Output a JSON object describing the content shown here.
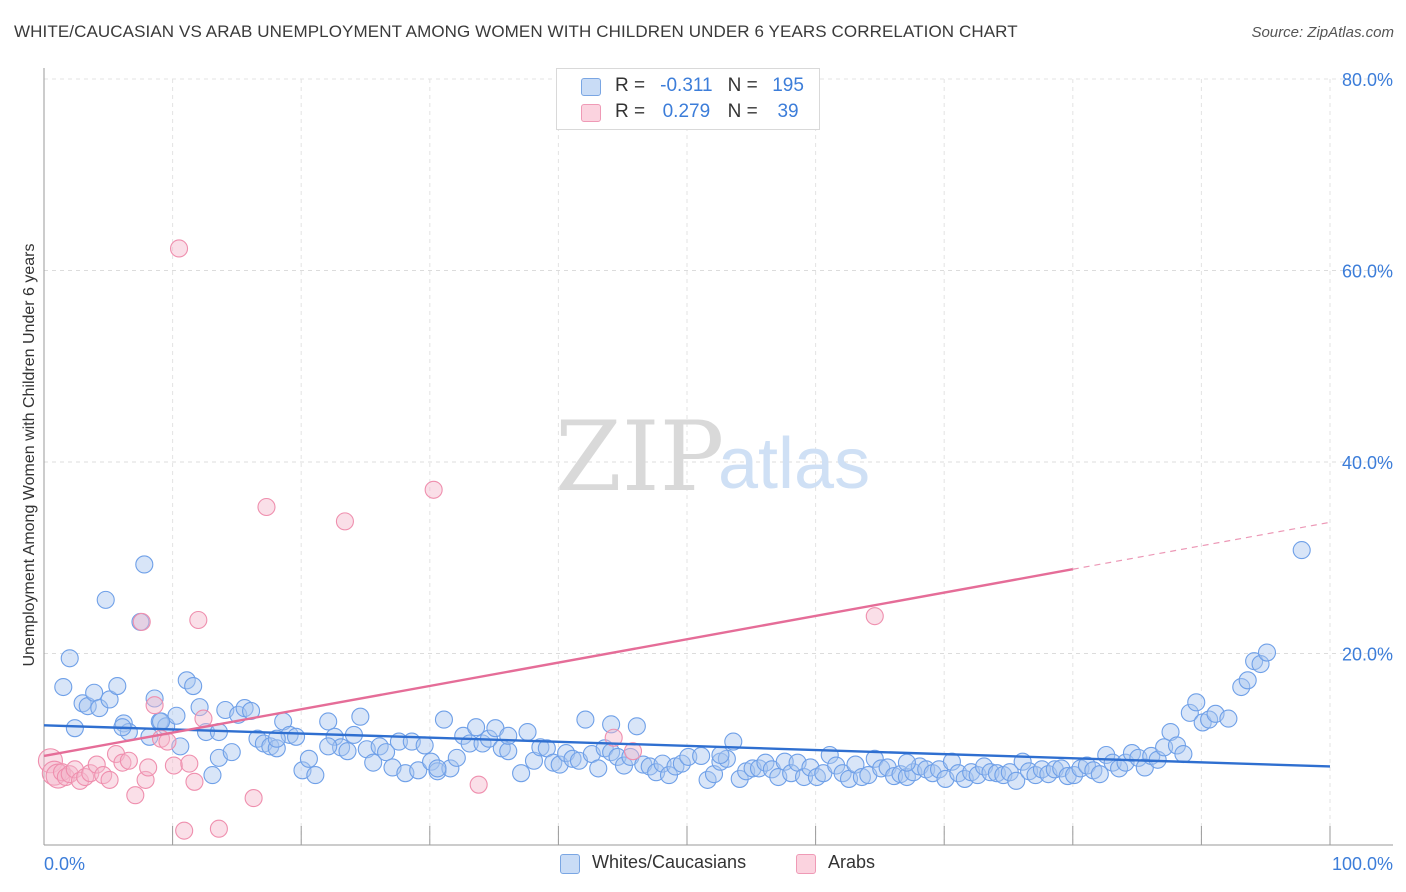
{
  "title": "WHITE/CAUCASIAN VS ARAB UNEMPLOYMENT AMONG WOMEN WITH CHILDREN UNDER 6 YEARS CORRELATION CHART",
  "source": "Source: ZipAtlas.com",
  "watermark": {
    "zip": "ZIP",
    "atlas": "atlas"
  },
  "legend": {
    "r_label": "R =",
    "n_label": "N =",
    "rows": [
      {
        "r": "-0.311",
        "n": "195",
        "color": "#a8c6f0"
      },
      {
        "r": "0.279",
        "n": "39",
        "color": "#f5b8cb"
      }
    ]
  },
  "bottom_legend": [
    "Whites/Caucasians",
    "Arabs"
  ],
  "chart_data": {
    "type": "scatter",
    "title": "WHITE/CAUCASIAN VS ARAB UNEMPLOYMENT AMONG WOMEN WITH CHILDREN UNDER 6 YEARS CORRELATION CHART",
    "xlabel": "",
    "ylabel": "Unemployment Among Women with Children Under 6 years",
    "xlim": [
      0,
      100
    ],
    "ylim": [
      0,
      80
    ],
    "x_tick_labels": [
      "0.0%",
      "100.0%"
    ],
    "y_ticks": [
      20,
      40,
      60,
      80
    ],
    "y_tick_labels": [
      "20.0%",
      "40.0%",
      "60.0%",
      "80.0%"
    ],
    "grid": true,
    "colors": {
      "whites": "#6fa0e8",
      "whites_line": "#2f6fd0",
      "arabs": "#ef8fae",
      "arabs_line": "#e56d98",
      "tick_label": "#3c7dd9"
    },
    "series": [
      {
        "name": "Whites/Caucasians",
        "r": -0.311,
        "n": 195,
        "trend": {
          "x": [
            0,
            100
          ],
          "y": [
            12.5,
            8.2
          ]
        },
        "points": [
          [
            1.5,
            16.5
          ],
          [
            2,
            19.5
          ],
          [
            2.4,
            12.2
          ],
          [
            3,
            14.8
          ],
          [
            3.4,
            14.5
          ],
          [
            3.9,
            15.9
          ],
          [
            4.3,
            14.3
          ],
          [
            4.8,
            25.6
          ],
          [
            5.1,
            15.2
          ],
          [
            5.7,
            16.6
          ],
          [
            6.2,
            12.7
          ],
          [
            6.6,
            11.8
          ],
          [
            7.8,
            29.3
          ],
          [
            7.5,
            23.3
          ],
          [
            8.2,
            11.3
          ],
          [
            8.6,
            15.3
          ],
          [
            9,
            12.9
          ],
          [
            9.5,
            12.4
          ],
          [
            10.3,
            13.5
          ],
          [
            10.6,
            10.3
          ],
          [
            11.1,
            17.2
          ],
          [
            11.6,
            16.6
          ],
          [
            12.1,
            14.4
          ],
          [
            12.6,
            11.8
          ],
          [
            13.1,
            7.3
          ],
          [
            13.6,
            9.1
          ],
          [
            14.1,
            14.1
          ],
          [
            14.6,
            9.7
          ],
          [
            15.1,
            13.6
          ],
          [
            15.6,
            14.3
          ],
          [
            16.1,
            14
          ],
          [
            16.6,
            11.1
          ],
          [
            17.1,
            10.6
          ],
          [
            17.6,
            10.3
          ],
          [
            18.1,
            10.1
          ],
          [
            18.6,
            12.9
          ],
          [
            19.1,
            11.5
          ],
          [
            19.6,
            11.3
          ],
          [
            20.1,
            7.8
          ],
          [
            20.6,
            9
          ],
          [
            21.1,
            7.3
          ],
          [
            22.1,
            12.9
          ],
          [
            22.6,
            11.3
          ],
          [
            23.1,
            10.2
          ],
          [
            23.6,
            9.8
          ],
          [
            24.1,
            11.5
          ],
          [
            24.6,
            13.4
          ],
          [
            25.1,
            10
          ],
          [
            25.6,
            8.6
          ],
          [
            26.1,
            10.3
          ],
          [
            26.6,
            9.7
          ],
          [
            27.1,
            8.1
          ],
          [
            27.6,
            10.8
          ],
          [
            28.1,
            7.5
          ],
          [
            28.6,
            10.8
          ],
          [
            29.1,
            7.8
          ],
          [
            29.6,
            10.4
          ],
          [
            30.1,
            8.7
          ],
          [
            30.6,
            7.7
          ],
          [
            31.1,
            13.1
          ],
          [
            31.6,
            8
          ],
          [
            32.1,
            9.1
          ],
          [
            32.6,
            11.4
          ],
          [
            33.1,
            10.6
          ],
          [
            33.6,
            12.3
          ],
          [
            34.1,
            10.6
          ],
          [
            34.6,
            11.1
          ],
          [
            35.1,
            12.2
          ],
          [
            35.6,
            10.1
          ],
          [
            36.1,
            9.8
          ],
          [
            37.1,
            7.5
          ],
          [
            37.6,
            11.8
          ],
          [
            38.1,
            8.8
          ],
          [
            38.6,
            10.2
          ],
          [
            39.1,
            10.1
          ],
          [
            39.6,
            8.6
          ],
          [
            40.1,
            8.4
          ],
          [
            40.6,
            9.6
          ],
          [
            41.1,
            9
          ],
          [
            41.6,
            8.8
          ],
          [
            42.1,
            13.1
          ],
          [
            42.6,
            9.5
          ],
          [
            43.1,
            8
          ],
          [
            43.6,
            10.1
          ],
          [
            44.1,
            9.7
          ],
          [
            44.6,
            9.2
          ],
          [
            45.1,
            8.3
          ],
          [
            45.6,
            9.2
          ],
          [
            46.1,
            12.4
          ],
          [
            46.6,
            8.4
          ],
          [
            47.1,
            8.2
          ],
          [
            47.6,
            7.6
          ],
          [
            48.1,
            8.5
          ],
          [
            48.6,
            7.3
          ],
          [
            49.1,
            8.2
          ],
          [
            49.6,
            8.5
          ],
          [
            50.1,
            9.2
          ],
          [
            51.1,
            9.3
          ],
          [
            51.6,
            6.8
          ],
          [
            52.1,
            7.4
          ],
          [
            52.6,
            8.7
          ],
          [
            53.1,
            9
          ],
          [
            53.6,
            10.8
          ],
          [
            54.1,
            6.9
          ],
          [
            54.6,
            7.7
          ],
          [
            55.1,
            8
          ],
          [
            55.6,
            8
          ],
          [
            56.1,
            8.6
          ],
          [
            56.6,
            7.9
          ],
          [
            57.1,
            7.1
          ],
          [
            57.6,
            8.7
          ],
          [
            58.1,
            7.5
          ],
          [
            58.6,
            8.6
          ],
          [
            59.1,
            7.1
          ],
          [
            59.6,
            8.1
          ],
          [
            60.1,
            7.1
          ],
          [
            60.6,
            7.5
          ],
          [
            61.1,
            9.4
          ],
          [
            61.6,
            8.3
          ],
          [
            62.1,
            7.5
          ],
          [
            62.6,
            6.9
          ],
          [
            63.1,
            8.4
          ],
          [
            63.6,
            7.1
          ],
          [
            64.1,
            7.3
          ],
          [
            64.6,
            9
          ],
          [
            65.1,
            8
          ],
          [
            65.6,
            8.1
          ],
          [
            66.1,
            7.2
          ],
          [
            66.6,
            7.4
          ],
          [
            67.1,
            7.1
          ],
          [
            67.6,
            7.6
          ],
          [
            68.1,
            8.2
          ],
          [
            68.6,
            7.9
          ],
          [
            69.1,
            7.5
          ],
          [
            69.6,
            7.9
          ],
          [
            70.1,
            6.9
          ],
          [
            70.6,
            8.7
          ],
          [
            71.1,
            7.5
          ],
          [
            71.6,
            6.9
          ],
          [
            72.1,
            7.6
          ],
          [
            72.6,
            7.3
          ],
          [
            73.1,
            8.2
          ],
          [
            73.6,
            7.6
          ],
          [
            74.1,
            7.5
          ],
          [
            74.6,
            7.3
          ],
          [
            75.1,
            7.6
          ],
          [
            75.6,
            6.7
          ],
          [
            76.1,
            8.7
          ],
          [
            76.6,
            7.7
          ],
          [
            77.1,
            7.3
          ],
          [
            77.6,
            7.9
          ],
          [
            78.1,
            7.4
          ],
          [
            78.6,
            7.9
          ],
          [
            79.1,
            8
          ],
          [
            79.6,
            7.2
          ],
          [
            80.1,
            7.3
          ],
          [
            80.6,
            8
          ],
          [
            81.1,
            8.3
          ],
          [
            81.6,
            7.8
          ],
          [
            82.1,
            7.4
          ],
          [
            82.6,
            9.4
          ],
          [
            83.1,
            8.6
          ],
          [
            83.6,
            8
          ],
          [
            84.1,
            8.6
          ],
          [
            84.6,
            9.6
          ],
          [
            85.1,
            9.1
          ],
          [
            85.6,
            8.1
          ],
          [
            86.1,
            9.3
          ],
          [
            86.6,
            8.9
          ],
          [
            87.1,
            10.2
          ],
          [
            87.6,
            11.8
          ],
          [
            88.1,
            10.4
          ],
          [
            88.6,
            9.5
          ],
          [
            89.1,
            13.8
          ],
          [
            89.6,
            14.9
          ],
          [
            90.1,
            12.8
          ],
          [
            90.6,
            13.1
          ],
          [
            91.1,
            13.7
          ],
          [
            92.1,
            13.2
          ],
          [
            93.1,
            16.5
          ],
          [
            93.6,
            17.2
          ],
          [
            94.1,
            19.2
          ],
          [
            94.6,
            18.9
          ],
          [
            95.1,
            20.1
          ],
          [
            97.8,
            30.8
          ],
          [
            44.1,
            12.6
          ],
          [
            36.1,
            11.4
          ],
          [
            30.6,
            8
          ],
          [
            22.1,
            10.3
          ],
          [
            18.1,
            11.1
          ],
          [
            13.6,
            11.8
          ],
          [
            9.1,
            12.9
          ],
          [
            6.1,
            12.3
          ],
          [
            52.6,
            9.4
          ],
          [
            67.1,
            8.6
          ]
        ]
      },
      {
        "name": "Arabs",
        "r": 0.279,
        "n": 39,
        "trend": {
          "x": [
            0,
            80
          ],
          "y": [
            9.3,
            28.8
          ]
        },
        "trend_extension": {
          "x": [
            80,
            100
          ],
          "y": [
            28.8,
            33.7
          ]
        },
        "points": [
          [
            0.5,
            8.8
          ],
          [
            0.8,
            7.5
          ],
          [
            1.1,
            7.2
          ],
          [
            1.4,
            7.6
          ],
          [
            1.7,
            7.1
          ],
          [
            2.0,
            7.4
          ],
          [
            2.4,
            7.9
          ],
          [
            2.8,
            6.7
          ],
          [
            3.2,
            7.1
          ],
          [
            3.6,
            7.5
          ],
          [
            4.1,
            8.4
          ],
          [
            4.6,
            7.3
          ],
          [
            5.1,
            6.8
          ],
          [
            5.6,
            9.5
          ],
          [
            6.1,
            8.6
          ],
          [
            6.6,
            8.8
          ],
          [
            7.1,
            5.2
          ],
          [
            7.6,
            23.3
          ],
          [
            7.9,
            6.8
          ],
          [
            8.1,
            8.1
          ],
          [
            8.6,
            14.6
          ],
          [
            9.1,
            11.1
          ],
          [
            9.6,
            10.8
          ],
          [
            10.1,
            8.3
          ],
          [
            10.5,
            62.3
          ],
          [
            10.9,
            1.5
          ],
          [
            11.3,
            8.5
          ],
          [
            11.7,
            6.6
          ],
          [
            12.0,
            23.5
          ],
          [
            12.4,
            13.2
          ],
          [
            13.6,
            1.7
          ],
          [
            16.3,
            4.9
          ],
          [
            17.3,
            35.3
          ],
          [
            23.4,
            33.8
          ],
          [
            30.3,
            37.1
          ],
          [
            33.8,
            6.3
          ],
          [
            44.3,
            11.2
          ],
          [
            45.8,
            9.8
          ],
          [
            64.6,
            23.9
          ]
        ]
      }
    ]
  }
}
